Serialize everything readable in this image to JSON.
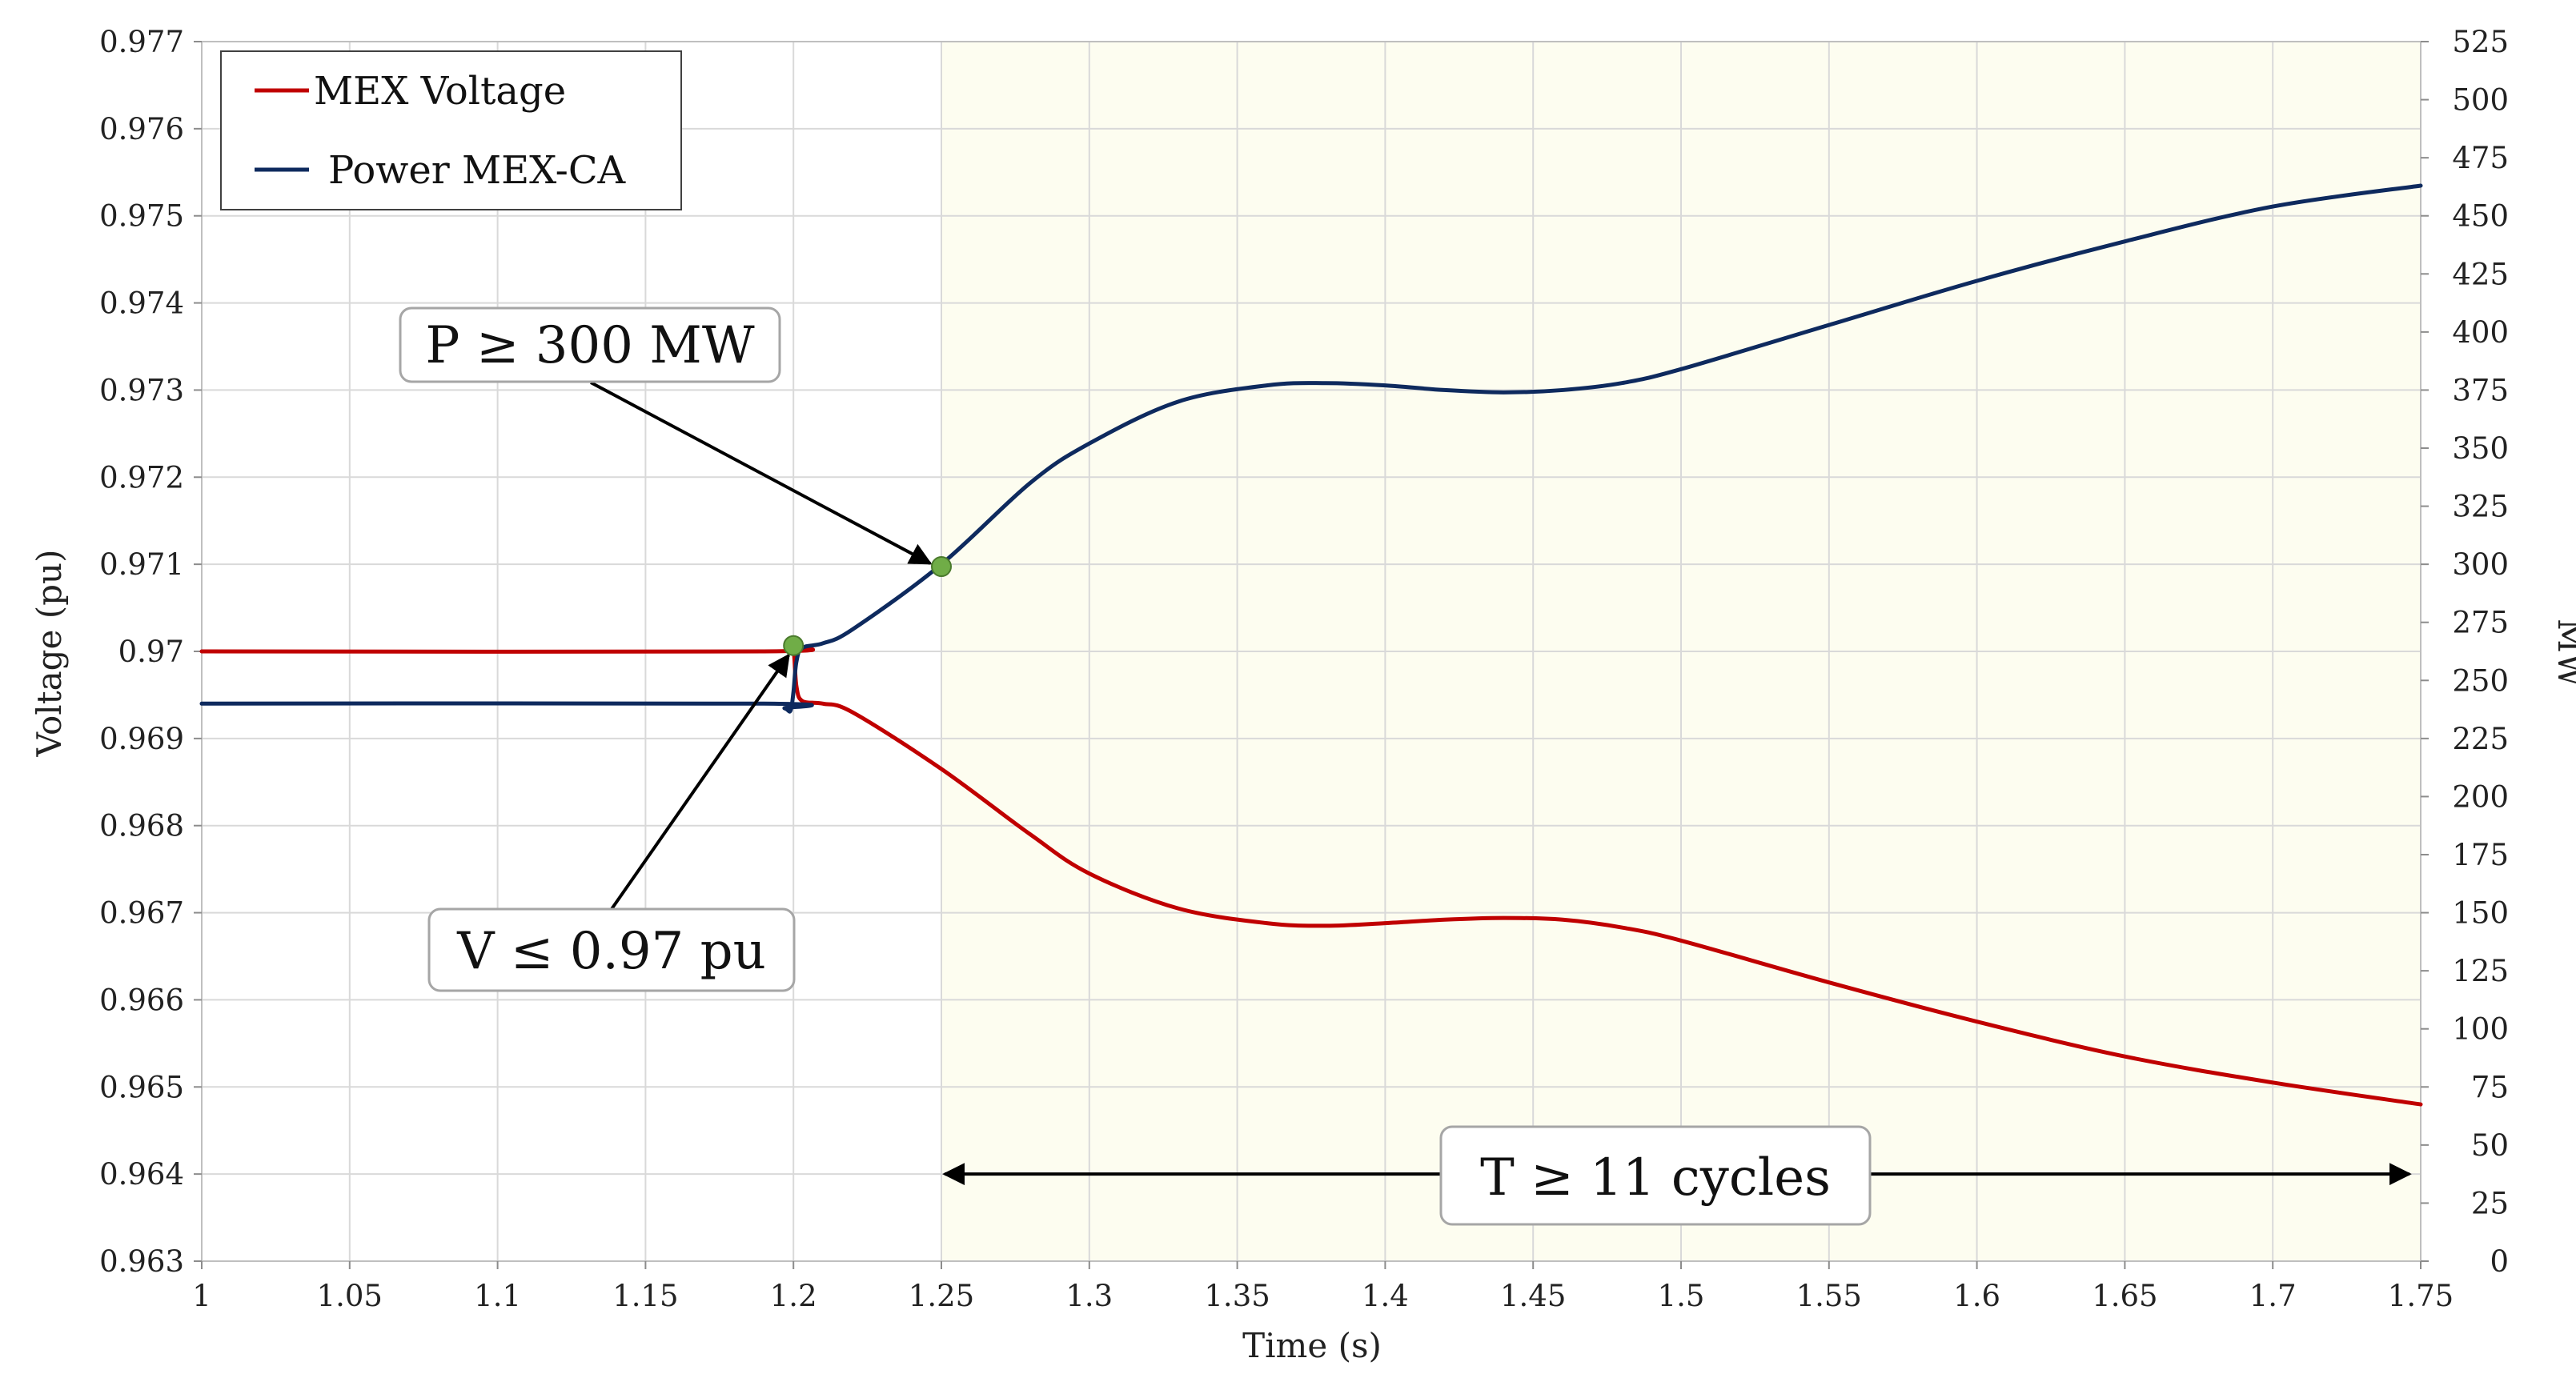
{
  "chart_data": {
    "type": "line",
    "title": "",
    "xlabel": "Time (s)",
    "ylabel": "Voltage (pu)",
    "y2label": "MW",
    "xlim": [
      1,
      1.75
    ],
    "ylim": [
      0.963,
      0.977
    ],
    "y2lim": [
      0,
      525
    ],
    "grid": true,
    "legend_position": "top-left",
    "x_ticks": [
      "1",
      "1.05",
      "1.1",
      "1.15",
      "1.2",
      "1.25",
      "1.3",
      "1.35",
      "1.4",
      "1.45",
      "1.5",
      "1.55",
      "1.6",
      "1.65",
      "1.7",
      "1.75"
    ],
    "y_ticks": [
      "0.963",
      "0.964",
      "0.965",
      "0.966",
      "0.967",
      "0.968",
      "0.969",
      "0.97",
      "0.971",
      "0.972",
      "0.973",
      "0.974",
      "0.975",
      "0.976",
      "0.977"
    ],
    "y2_ticks": [
      "0",
      "25",
      "50",
      "75",
      "100",
      "125",
      "150",
      "175",
      "200",
      "225",
      "250",
      "275",
      "300",
      "325",
      "350",
      "375",
      "400",
      "425",
      "450",
      "475",
      "500",
      "525"
    ],
    "highlight_region": {
      "x_start": 1.25,
      "x_end": 1.75,
      "color": "#fdfdf0"
    },
    "series": [
      {
        "name": "MEX Voltage",
        "axis": "left",
        "color": "#c00000",
        "x": [
          1.0,
          1.19,
          1.198,
          1.2,
          1.201,
          1.203,
          1.21,
          1.22,
          1.25,
          1.28,
          1.3,
          1.33,
          1.36,
          1.38,
          1.4,
          1.42,
          1.44,
          1.46,
          1.48,
          1.5,
          1.55,
          1.6,
          1.65,
          1.7,
          1.75
        ],
        "y": [
          0.97,
          0.97,
          0.97005,
          0.97002,
          0.9696,
          0.96943,
          0.9694,
          0.9693,
          0.96865,
          0.9679,
          0.96745,
          0.96705,
          0.96688,
          0.96685,
          0.96688,
          0.96692,
          0.96694,
          0.96692,
          0.96683,
          0.96668,
          0.9662,
          0.96575,
          0.96535,
          0.96505,
          0.9648
        ]
      },
      {
        "name": "Power MEX-CA",
        "axis": "right",
        "color": "#0e2a5e",
        "x": [
          1.0,
          1.19,
          1.197,
          1.199,
          1.2,
          1.201,
          1.203,
          1.21,
          1.22,
          1.25,
          1.28,
          1.3,
          1.33,
          1.36,
          1.38,
          1.4,
          1.42,
          1.44,
          1.46,
          1.48,
          1.5,
          1.55,
          1.6,
          1.65,
          1.7,
          1.75
        ],
        "y": [
          240,
          240,
          238,
          237,
          245,
          258,
          264,
          266,
          272,
          300,
          335,
          352,
          370,
          377,
          378,
          377,
          375,
          374,
          375,
          378,
          384,
          403,
          422,
          439,
          454,
          463
        ]
      }
    ],
    "markers": [
      {
        "name": "voltage-trigger",
        "x": 1.2,
        "y2": 265,
        "color": "#70ad47"
      },
      {
        "name": "power-trigger",
        "x": 1.25,
        "y2": 299,
        "color": "#70ad47"
      }
    ],
    "annotations": {
      "power_label": "P ≥ 300 MW",
      "voltage_label": "V ≤ 0.97 pu",
      "time_label": "T ≥ 11 cycles"
    }
  }
}
